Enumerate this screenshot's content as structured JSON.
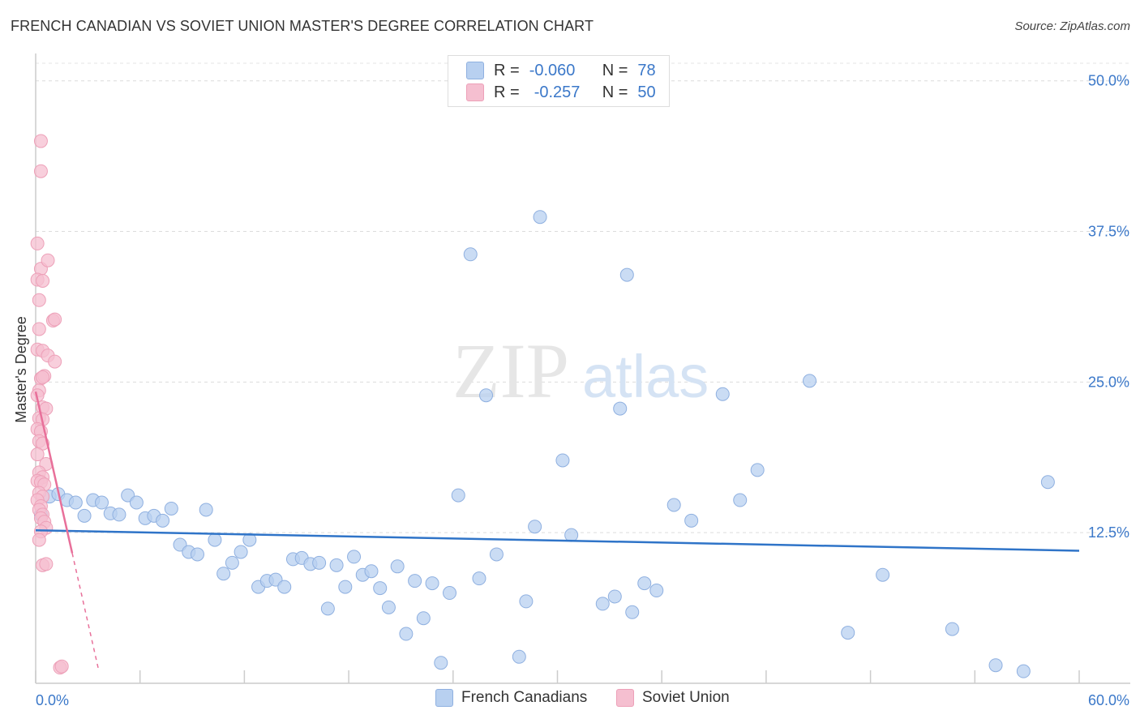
{
  "header": {
    "title": "FRENCH CANADIAN VS SOVIET UNION MASTER'S DEGREE CORRELATION CHART",
    "source": "Source: ZipAtlas.com"
  },
  "stats": {
    "r_label": "R =",
    "n_label": "N =",
    "rows": [
      {
        "r": "-0.060",
        "n": "78"
      },
      {
        "r": "-0.257",
        "n": "50"
      }
    ]
  },
  "watermark": {
    "zip": "ZIP",
    "atlas": "atlas"
  },
  "colors": {
    "blue_fill": "#b8d0f0",
    "blue_stroke": "#8fb0e0",
    "blue_line": "#2f74c8",
    "pink_fill": "#f5bfd0",
    "pink_stroke": "#eda0b8",
    "pink_line": "#e8709a",
    "tick_label": "#3b78c9"
  },
  "chart_data": {
    "type": "scatter",
    "title": "FRENCH CANADIAN VS SOVIET UNION MASTER'S DEGREE CORRELATION CHART",
    "xlabel": "",
    "ylabel": "Master's Degree",
    "xlim": [
      0,
      60
    ],
    "ylim": [
      0,
      52
    ],
    "x_tick_labels": [
      {
        "value": 0,
        "label": "0.0%"
      },
      {
        "value": 60,
        "label": "60.0%"
      }
    ],
    "y_ticks": [
      {
        "value": 12.5,
        "label": "12.5%"
      },
      {
        "value": 25.0,
        "label": "25.0%"
      },
      {
        "value": 37.5,
        "label": "37.5%"
      },
      {
        "value": 50.0,
        "label": "50.0%"
      }
    ],
    "legend": [
      "French Canadians",
      "Soviet Union"
    ],
    "series": [
      {
        "name": "French Canadians",
        "r": -0.06,
        "n": 78,
        "trend": {
          "x0": 0,
          "y0": 12.7,
          "x1": 60,
          "y1": 11.0
        },
        "points": [
          [
            0.3,
            14.0
          ],
          [
            0.8,
            15.5
          ],
          [
            1.3,
            15.7
          ],
          [
            1.8,
            15.2
          ],
          [
            2.3,
            15.0
          ],
          [
            2.8,
            13.9
          ],
          [
            3.3,
            15.2
          ],
          [
            3.8,
            15.0
          ],
          [
            4.3,
            14.1
          ],
          [
            4.8,
            14.0
          ],
          [
            5.3,
            15.6
          ],
          [
            5.8,
            15.0
          ],
          [
            6.3,
            13.7
          ],
          [
            6.8,
            13.9
          ],
          [
            7.3,
            13.5
          ],
          [
            7.8,
            14.5
          ],
          [
            8.3,
            11.5
          ],
          [
            8.8,
            10.9
          ],
          [
            9.3,
            10.7
          ],
          [
            9.8,
            14.4
          ],
          [
            10.3,
            11.9
          ],
          [
            10.8,
            9.1
          ],
          [
            11.3,
            10.0
          ],
          [
            11.8,
            10.9
          ],
          [
            12.3,
            11.9
          ],
          [
            12.8,
            8.0
          ],
          [
            13.3,
            8.5
          ],
          [
            13.8,
            8.6
          ],
          [
            14.3,
            8.0
          ],
          [
            14.8,
            10.3
          ],
          [
            15.3,
            10.4
          ],
          [
            15.8,
            9.9
          ],
          [
            16.3,
            10.0
          ],
          [
            16.8,
            6.2
          ],
          [
            17.3,
            9.8
          ],
          [
            17.8,
            8.0
          ],
          [
            18.3,
            10.5
          ],
          [
            18.8,
            9.0
          ],
          [
            19.3,
            9.3
          ],
          [
            19.8,
            7.9
          ],
          [
            20.3,
            6.3
          ],
          [
            20.8,
            9.7
          ],
          [
            21.3,
            4.1
          ],
          [
            21.8,
            8.5
          ],
          [
            22.3,
            5.4
          ],
          [
            22.8,
            8.3
          ],
          [
            23.3,
            1.7
          ],
          [
            23.8,
            7.5
          ],
          [
            24.3,
            15.6
          ],
          [
            25.0,
            35.6
          ],
          [
            25.5,
            8.7
          ],
          [
            25.9,
            23.9
          ],
          [
            26.5,
            10.7
          ],
          [
            27.8,
            2.2
          ],
          [
            28.2,
            6.8
          ],
          [
            28.7,
            13.0
          ],
          [
            29.0,
            38.7
          ],
          [
            30.3,
            18.5
          ],
          [
            30.8,
            12.3
          ],
          [
            32.6,
            6.6
          ],
          [
            33.3,
            7.2
          ],
          [
            33.6,
            22.8
          ],
          [
            34.0,
            33.9
          ],
          [
            34.3,
            5.9
          ],
          [
            35.0,
            8.3
          ],
          [
            35.7,
            7.7
          ],
          [
            36.7,
            14.8
          ],
          [
            37.7,
            13.5
          ],
          [
            39.5,
            24.0
          ],
          [
            40.5,
            15.2
          ],
          [
            41.5,
            17.7
          ],
          [
            44.5,
            25.1
          ],
          [
            46.7,
            4.2
          ],
          [
            48.7,
            9.0
          ],
          [
            52.7,
            4.5
          ],
          [
            55.2,
            1.5
          ],
          [
            56.8,
            1.0
          ],
          [
            58.2,
            16.7
          ]
        ]
      },
      {
        "name": "Soviet Union",
        "r": -0.257,
        "n": 50,
        "trend": {
          "x0": 0,
          "y0": 24.2,
          "x1": 2.1,
          "y1": 10.8,
          "dash_to_x": 3.6
        },
        "points": [
          [
            0.3,
            45.0
          ],
          [
            0.3,
            42.5
          ],
          [
            0.1,
            36.5
          ],
          [
            0.3,
            34.4
          ],
          [
            0.7,
            35.1
          ],
          [
            0.1,
            33.5
          ],
          [
            0.4,
            33.4
          ],
          [
            0.2,
            31.8
          ],
          [
            1.0,
            30.1
          ],
          [
            1.1,
            30.2
          ],
          [
            0.2,
            29.4
          ],
          [
            0.1,
            27.7
          ],
          [
            0.4,
            27.6
          ],
          [
            0.7,
            27.2
          ],
          [
            1.1,
            26.7
          ],
          [
            0.3,
            25.3
          ],
          [
            0.5,
            25.5
          ],
          [
            0.4,
            25.4
          ],
          [
            0.2,
            24.3
          ],
          [
            0.1,
            23.9
          ],
          [
            0.4,
            22.9
          ],
          [
            0.6,
            22.8
          ],
          [
            0.2,
            22.0
          ],
          [
            0.4,
            21.9
          ],
          [
            0.1,
            21.1
          ],
          [
            0.3,
            20.9
          ],
          [
            0.2,
            20.1
          ],
          [
            0.4,
            19.9
          ],
          [
            0.1,
            19.0
          ],
          [
            0.6,
            18.2
          ],
          [
            0.2,
            17.5
          ],
          [
            0.4,
            17.1
          ],
          [
            0.1,
            16.8
          ],
          [
            0.3,
            16.7
          ],
          [
            0.5,
            16.5
          ],
          [
            0.2,
            15.8
          ],
          [
            0.4,
            15.5
          ],
          [
            0.1,
            15.2
          ],
          [
            0.3,
            14.7
          ],
          [
            0.2,
            14.4
          ],
          [
            0.4,
            14.0
          ],
          [
            0.3,
            13.7
          ],
          [
            0.5,
            13.4
          ],
          [
            0.6,
            12.9
          ],
          [
            0.3,
            12.6
          ],
          [
            0.2,
            11.9
          ],
          [
            0.4,
            9.8
          ],
          [
            0.6,
            9.9
          ],
          [
            1.4,
            1.3
          ],
          [
            1.5,
            1.4
          ]
        ]
      }
    ]
  }
}
